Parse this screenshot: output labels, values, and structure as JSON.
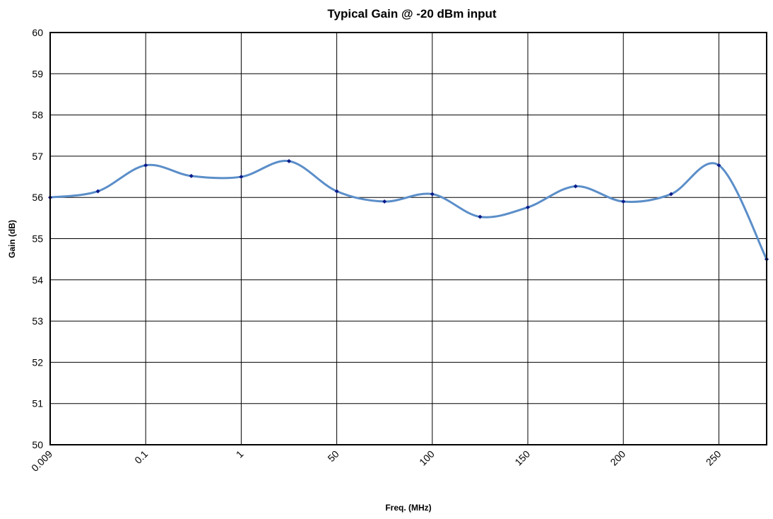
{
  "chart_data": {
    "type": "line",
    "title": "Typical Gain @ -20 dBm input",
    "xlabel": "Freq. (MHz)",
    "ylabel": "Gain (dB)",
    "x_tick_labels": [
      "0.009",
      "0.1",
      "1",
      "50",
      "100",
      "150",
      "200",
      "250"
    ],
    "y_tick_labels": [
      "50",
      "51",
      "52",
      "53",
      "54",
      "55",
      "56",
      "57",
      "58",
      "59",
      "60"
    ],
    "ylim": [
      50,
      60
    ],
    "grid": true,
    "legend": "none",
    "series": [
      {
        "color": "#5b8ec9",
        "marker_color": "#0a1a8a",
        "points": [
          {
            "x": 0.009,
            "y": 56.0
          },
          {
            "x": 0.03,
            "y": 56.15
          },
          {
            "x": 0.1,
            "y": 56.78
          },
          {
            "x": 0.3,
            "y": 56.52
          },
          {
            "x": 1,
            "y": 56.5
          },
          {
            "x": 25,
            "y": 56.88
          },
          {
            "x": 50,
            "y": 56.15
          },
          {
            "x": 75,
            "y": 55.9
          },
          {
            "x": 100,
            "y": 56.08
          },
          {
            "x": 125,
            "y": 55.53
          },
          {
            "x": 150,
            "y": 55.76
          },
          {
            "x": 175,
            "y": 56.27
          },
          {
            "x": 200,
            "y": 55.9
          },
          {
            "x": 225,
            "y": 56.08
          },
          {
            "x": 250,
            "y": 56.78
          },
          {
            "x": 275,
            "y": 54.5
          }
        ]
      }
    ]
  }
}
